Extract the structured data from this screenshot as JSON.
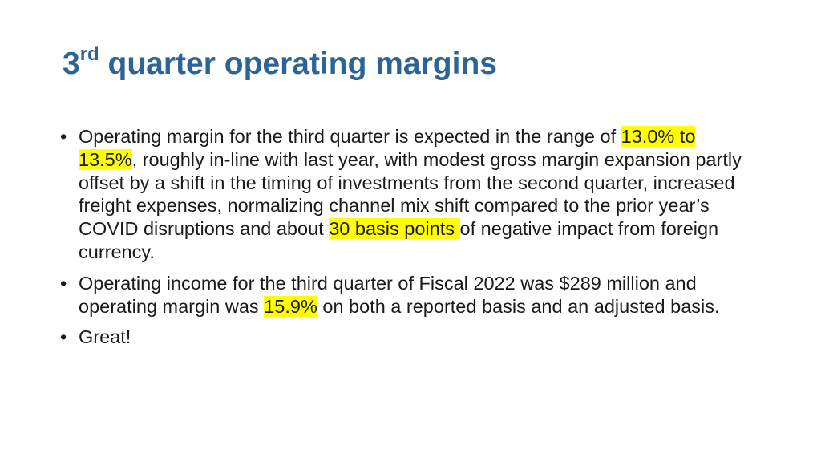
{
  "slide": {
    "title_prefix": "3",
    "title_superscript": "rd",
    "title_rest": " quarter operating margins",
    "bullet_glyph": "•",
    "bullets": [
      {
        "text_1": "Operating margin for the third quarter is expected in the range of ",
        "highlight_1": "13.0% to 13.5%",
        "text_2": ", roughly in-line with last year, with modest gross margin expansion partly offset by a shift in the timing of investments from the second quarter, increased freight expenses, normalizing channel mix shift compared to the prior year’s COVID disruptions and about ",
        "highlight_2": "30 basis points ",
        "text_3": "of negative impact from foreign currency."
      },
      {
        "text_1": "Operating income for the third quarter of Fiscal 2022 was $289 million and operating margin was ",
        "highlight_1": "15.9%",
        "text_2": " on both a reported basis and an adjusted basis."
      },
      {
        "text_1": "Great!"
      }
    ]
  },
  "colors": {
    "title": "#2d6496",
    "body_text": "#1a1a1a",
    "highlight": "#ffff00",
    "background": "#ffffff"
  }
}
